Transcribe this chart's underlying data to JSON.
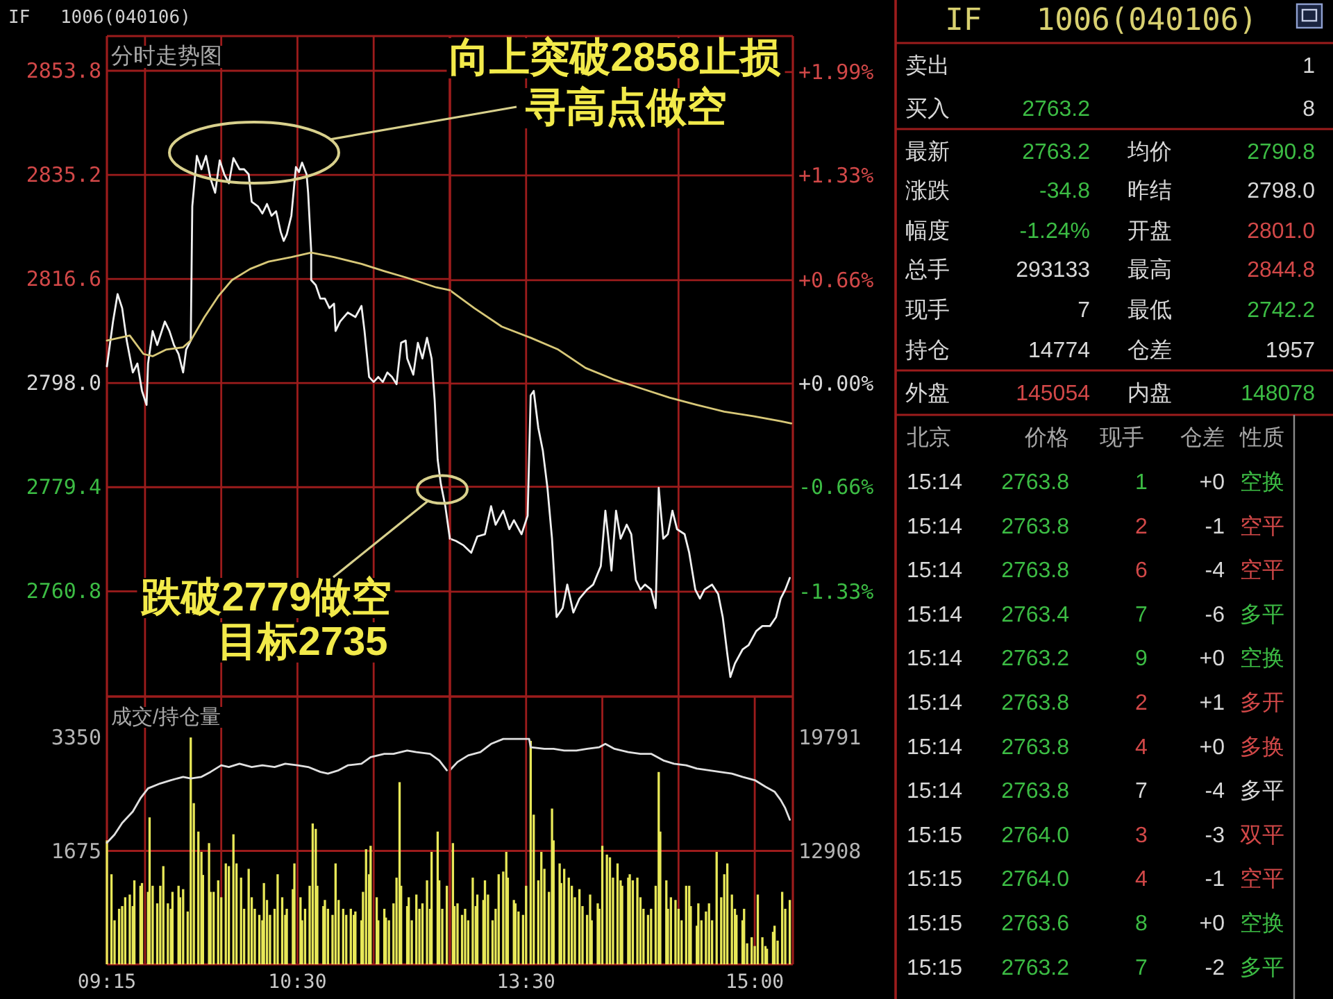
{
  "chart_data": [
    {
      "type": "line",
      "title": "IF 1006(040106)",
      "subtitle": "分时走势图",
      "xlim": [
        9.25,
        11.5
      ],
      "xticks": [
        {
          "value": 9.5,
          "label": null
        },
        {
          "value": 10,
          "label": null
        },
        {
          "value": 10.5,
          "label": null
        },
        {
          "value": 11,
          "label": null
        }
      ],
      "ylim": [
        2742,
        2860
      ],
      "yticks": [
        2760.8,
        2779.4,
        {
          "value": 2798,
          "label": "2798.0"
        },
        2816.6,
        2835.2,
        2853.8
      ],
      "y2lim": [
        -2.0,
        2.22
      ],
      "grid": true,
      "tick_labels": "y",
      "series": [
        {
          "color": "#f0f0f0",
          "x": [
            9.25,
            9.29,
            9.32,
            9.35,
            9.38,
            9.42,
            9.45,
            9.48,
            9.51,
            9.52,
            9.55,
            9.58,
            9.63,
            9.66,
            9.69,
            9.72,
            9.75,
            9.77,
            9.8,
            9.81,
            9.84,
            9.87,
            9.9,
            9.93,
            9.96,
            9.99,
            10.02,
            10.05,
            10.08,
            10.12,
            10.15,
            10.18,
            10.2,
            10.24,
            10.27,
            10.3,
            10.33,
            10.36,
            10.39,
            10.41,
            10.43,
            10.46,
            10.49,
            10.51,
            10.53,
            10.56,
            10.57,
            10.59,
            10.59,
            10.62,
            10.65,
            10.68,
            10.71,
            10.74,
            10.75,
            10.78,
            10.83,
            10.88,
            10.92,
            10.94,
            10.97,
            11.0,
            11.03,
            11.06,
            11.09,
            11.12,
            11.15,
            11.18,
            11.21,
            11.22,
            11.26,
            11.29,
            11.32,
            11.35,
            11.38,
            11.4,
            11.42,
            11.44,
            11.47,
            11.5
          ],
          "values": [
            2801.0,
            2809.0,
            2813.9,
            2811.4,
            2805.6,
            2799.9,
            2801.5,
            2796.6,
            2794.1,
            2801.5,
            2807.3,
            2804.8,
            2809.0,
            2807.3,
            2804.8,
            2803.2,
            2799.9,
            2804.0,
            2805.6,
            2829.6,
            2838.6,
            2836.2,
            2838.6,
            2834.5,
            2832.0,
            2837.8,
            2835.3,
            2833.7,
            2838.2,
            2836.2,
            2836.2,
            2835.3,
            2830.4,
            2829.6,
            2828.3,
            2830.0,
            2827.9,
            2828.7,
            2825.0,
            2823.4,
            2824.6,
            2827.9,
            2836.6,
            2835.7,
            2837.4,
            2835.3,
            2832.0,
            2821.7,
            2816.4,
            2815.5,
            2813.1,
            2813.1,
            2811.4,
            2812.2,
            2807.3,
            2809.0,
            2810.6,
            2809.8,
            2811.8,
            2807.3,
            2799.1,
            2798.2,
            2799.1,
            2798.2,
            2799.9,
            2799.1,
            2797.8,
            2805.2,
            2805.6,
            2802.4,
            2799.5,
            2805.2,
            2802.4,
            2806.1,
            2802.4,
            2795.0,
            2784.3,
            2780.1,
            2776.0,
            2770.2
          ]
        },
        {
          "color": "#d8c878",
          "x": [
            9.25,
            9.4,
            9.49,
            9.55,
            9.64,
            9.75,
            9.8,
            9.89,
            9.98,
            10.07,
            10.19,
            10.31,
            10.46,
            10.59,
            10.74,
            10.92,
            11.07,
            11.22,
            11.41,
            11.48,
            11.5
          ],
          "values": [
            2805.6,
            2806.5,
            2803.2,
            2802.8,
            2804.0,
            2804.4,
            2805.6,
            2809.8,
            2813.5,
            2816.4,
            2818.4,
            2819.7,
            2820.5,
            2821.3,
            2820.5,
            2819.3,
            2818.0,
            2816.8,
            2815.1,
            2814.7,
            2814.6
          ]
        }
      ],
      "annotations": [
        "向上突破2858止损",
        "寻高点做空",
        {
          "text": "跌破2779做空",
          "x": 11.45,
          "y": 2779
        },
        "目标2735"
      ]
    },
    {
      "type": "line",
      "xlim": [
        13,
        15.25
      ],
      "xticks": [
        {
          "value": 13.5,
          "label": null
        },
        {
          "value": 14.5,
          "label": null
        }
      ],
      "ylim": [
        2742,
        2860
      ],
      "y2lim": [
        -2.0,
        2.22
      ],
      "y2ticks": [
        {
          "value": -1.33,
          "label": "-1.33%"
        },
        {
          "value": -0.66,
          "label": "-0.66%"
        },
        {
          "value": 0,
          "label": "+0.00%"
        },
        {
          "value": 0.66,
          "label": "+0.66%"
        },
        {
          "value": 1.33,
          "label": "+1.33%"
        },
        {
          "value": 1.99,
          "label": "+1.99%"
        }
      ],
      "grid": true,
      "tick_labels": "y",
      "series": [
        {
          "color": "#f0f0f0",
          "x": [
            13.0,
            13.04,
            13.09,
            13.14,
            13.18,
            13.23,
            13.27,
            13.3,
            13.35,
            13.39,
            13.42,
            13.47,
            13.51,
            13.53,
            13.55,
            13.58,
            13.61,
            13.64,
            13.67,
            13.7,
            13.74,
            13.77,
            13.81,
            13.85,
            13.9,
            13.94,
            13.99,
            14.02,
            14.04,
            14.06,
            14.09,
            14.12,
            14.16,
            14.19,
            14.22,
            14.25,
            14.28,
            14.32,
            14.35,
            14.37,
            14.4,
            14.43,
            14.46,
            14.49,
            14.54,
            14.57,
            14.61,
            14.64,
            14.67,
            14.72,
            14.76,
            14.79,
            14.82,
            14.84,
            14.87,
            14.92,
            14.96,
            15.01,
            15.05,
            15.1,
            15.14,
            15.17,
            15.2,
            15.23
          ],
          "values": [
            2770.2,
            2769.8,
            2769.0,
            2767.7,
            2770.6,
            2771.0,
            2776.0,
            2772.7,
            2775.2,
            2771.9,
            2773.5,
            2771.0,
            2774.3,
            2795.8,
            2796.6,
            2790.0,
            2785.9,
            2779.3,
            2770.2,
            2756.2,
            2757.8,
            2762.0,
            2757.0,
            2759.5,
            2761.1,
            2762.0,
            2765.3,
            2775.2,
            2770.2,
            2764.5,
            2775.2,
            2770.2,
            2772.7,
            2771.0,
            2762.8,
            2761.1,
            2762.0,
            2761.1,
            2757.8,
            2779.3,
            2770.2,
            2771.0,
            2775.2,
            2771.9,
            2771.0,
            2767.7,
            2761.1,
            2759.5,
            2761.1,
            2762.0,
            2760.3,
            2756.2,
            2749.6,
            2745.5,
            2747.9,
            2750.4,
            2751.2,
            2753.7,
            2754.6,
            2754.6,
            2756.2,
            2759.5,
            2761.1,
            2763.2
          ]
        },
        {
          "color": "#d8c878",
          "x": [
            13.0,
            13.16,
            13.34,
            13.53,
            13.71,
            13.89,
            14.07,
            14.26,
            14.44,
            14.62,
            14.8,
            14.99,
            15.17,
            15.24
          ],
          "values": [
            2814.6,
            2811.4,
            2808.1,
            2806.1,
            2804.0,
            2800.7,
            2798.7,
            2797.0,
            2795.4,
            2794.1,
            2792.9,
            2792.1,
            2791.2,
            2790.8
          ]
        }
      ]
    },
    {
      "type": "bar",
      "title": "成交/持仓量",
      "xlim": [
        9.25,
        11.5
      ],
      "xticks": [
        {
          "value": 9.25,
          "label": "09:15"
        },
        {
          "value": 9.5,
          "label": null
        },
        {
          "value": 10,
          "label": null
        },
        {
          "value": 10.5,
          "label": "10:30"
        },
        {
          "value": 11,
          "label": null
        }
      ],
      "ylim": [
        0,
        3350
      ],
      "yticks": [
        1675,
        3350
      ],
      "y2lim": [
        6025,
        19791
      ],
      "grid": true,
      "series": [
        {
          "type": "bar",
          "color": "#e8e858",
          "x": [
            9.25,
            9.28,
            9.3,
            9.33,
            9.35,
            9.37,
            9.4,
            9.42,
            9.43,
            9.47,
            9.48,
            9.52,
            9.53,
            9.55,
            9.58,
            9.6,
            9.62,
            9.65,
            9.67,
            9.68,
            9.72,
            9.73,
            9.75,
            9.78,
            9.8,
            9.82,
            9.85,
            9.87,
            9.88,
            9.92,
            9.93,
            9.95,
            9.98,
            10.0,
            10.03,
            10.05,
            10.08,
            10.1,
            10.13,
            10.15,
            10.18,
            10.2,
            10.22,
            10.25,
            10.27,
            10.28,
            10.3,
            10.32,
            10.35,
            10.37,
            10.4,
            10.42,
            10.43,
            10.47,
            10.48,
            10.52,
            10.53,
            10.55,
            10.58,
            10.6,
            10.62,
            10.63,
            10.67,
            10.68,
            10.7,
            10.73,
            10.75,
            10.77,
            10.8,
            10.82,
            10.85,
            10.87,
            10.88,
            10.92,
            10.93,
            10.95,
            10.97,
            10.98,
            11.02,
            11.03,
            11.07,
            11.08,
            11.1,
            11.13,
            11.15,
            11.17,
            11.18,
            11.22,
            11.23,
            11.25,
            11.28,
            11.3,
            11.32,
            11.35,
            11.37,
            11.38,
            11.42,
            11.43,
            11.45,
            11.48
          ],
          "values": [
            1830,
            1330,
            650,
            820,
            860,
            990,
            1030,
            860,
            1240,
            1160,
            1200,
            1070,
            2170,
            1160,
            900,
            1160,
            1450,
            900,
            820,
            1070,
            1160,
            990,
            1110,
            780,
            3350,
            2380,
            1960,
            1660,
            1320,
            1790,
            1070,
            1070,
            1240,
            990,
            1490,
            1450,
            1920,
            1490,
            1280,
            820,
            1410,
            990,
            820,
            730,
            650,
            1200,
            950,
            730,
            820,
            1330,
            990,
            730,
            820,
            1110,
            1490,
            990,
            650,
            820,
            1160,
            2080,
            2000,
            1160,
            860,
            950,
            820,
            730,
            1490,
            950,
            820,
            730,
            820,
            730,
            780,
            650,
            1070,
            1700,
            1330,
            1750,
            990,
            650,
            820,
            690,
            650,
            900,
            1280,
            2690,
            1160,
            860,
            990,
            650,
            1030,
            820,
            900,
            1240,
            820,
            1660,
            1960,
            1240,
            820,
            1160
          ]
        },
        {
          "type": "line",
          "axis": "y2",
          "color": "#e0e0e0",
          "x": [
            9.25,
            9.3,
            9.35,
            9.42,
            9.47,
            9.52,
            9.6,
            9.67,
            9.75,
            9.8,
            9.87,
            9.93,
            10.0,
            10.05,
            10.12,
            10.2,
            10.27,
            10.35,
            10.42,
            10.5,
            10.57,
            10.65,
            10.7,
            10.77,
            10.83,
            10.92,
            10.98,
            11.07,
            11.13,
            11.22,
            11.28,
            11.37,
            11.43,
            11.48
          ],
          "values": [
            13400,
            13900,
            14600,
            15300,
            16100,
            16700,
            17000,
            17200,
            17400,
            17300,
            17400,
            17700,
            18100,
            18000,
            18200,
            18000,
            18100,
            18000,
            18200,
            18100,
            18000,
            17700,
            17600,
            17800,
            18100,
            18200,
            18600,
            18800,
            18800,
            19000,
            18900,
            18800,
            18400,
            17800
          ]
        }
      ]
    },
    {
      "type": "bar",
      "xlim": [
        13,
        15.25
      ],
      "xticks": [
        {
          "value": 13.5,
          "label": "13:30"
        },
        {
          "value": 14,
          "label": null
        },
        {
          "value": 14.5,
          "label": null
        },
        {
          "value": 15,
          "label": "15:00"
        }
      ],
      "ylim": [
        0,
        3350
      ],
      "y2lim": [
        6025,
        19791
      ],
      "y2ticks": [
        12908,
        19791
      ],
      "grid": true,
      "series": [
        {
          "type": "bar",
          "color": "#e8e858",
          "x": [
            13.02,
            13.03,
            13.05,
            13.08,
            13.1,
            13.12,
            13.15,
            13.17,
            13.18,
            13.22,
            13.23,
            13.25,
            13.28,
            13.3,
            13.32,
            13.35,
            13.37,
            13.38,
            13.42,
            13.43,
            13.45,
            13.48,
            13.5,
            13.53,
            13.55,
            13.58,
            13.6,
            13.62,
            13.65,
            13.67,
            13.68,
            13.72,
            13.73,
            13.75,
            13.78,
            13.8,
            13.82,
            13.85,
            13.87,
            13.9,
            13.92,
            13.93,
            13.97,
            13.98,
            14.0,
            14.03,
            14.05,
            14.07,
            14.1,
            14.12,
            14.13,
            14.17,
            14.18,
            14.2,
            14.23,
            14.25,
            14.27,
            14.3,
            14.32,
            14.35,
            14.37,
            14.38,
            14.42,
            14.43,
            14.45,
            14.48,
            14.5,
            14.52,
            14.55,
            14.57,
            14.58,
            14.62,
            14.63,
            14.65,
            14.68,
            14.7,
            14.72,
            14.75,
            14.78,
            14.8,
            14.82,
            14.85,
            14.87,
            14.88,
            14.92,
            14.93,
            14.95,
            14.98,
            15.0,
            15.02,
            15.05,
            15.07,
            15.08,
            15.12,
            15.13,
            15.15,
            15.18,
            15.2,
            15.23
          ],
          "values": [
            1790,
            860,
            900,
            730,
            820,
            650,
            1280,
            860,
            1030,
            950,
            1240,
            1030,
            650,
            820,
            1330,
            1370,
            1660,
            1280,
            950,
            900,
            780,
            730,
            1160,
            3300,
            2210,
            1240,
            1660,
            1410,
            1070,
            2300,
            1830,
            1490,
            1200,
            1410,
            1280,
            1160,
            990,
            1110,
            860,
            730,
            1030,
            650,
            900,
            820,
            1750,
            1620,
            1580,
            1280,
            1490,
            1240,
            1160,
            1280,
            1330,
            1240,
            1280,
            990,
            820,
            730,
            820,
            1160,
            2840,
            1960,
            1240,
            820,
            990,
            950,
            820,
            650,
            1160,
            1160,
            860,
            570,
            900,
            650,
            780,
            900,
            650,
            1660,
            990,
            1330,
            1490,
            1030,
            820,
            730,
            650,
            820,
            310,
            400,
            270,
            1030,
            400,
            270,
            230,
            480,
            570,
            350,
            1070,
            820,
            950
          ]
        },
        {
          "type": "line",
          "axis": "y2",
          "color": "#e0e0e0",
          "x": [
            13.0,
            13.05,
            13.12,
            13.2,
            13.27,
            13.35,
            13.42,
            13.48,
            13.52,
            13.53,
            13.62,
            13.68,
            13.75,
            13.83,
            13.9,
            13.98,
            14.02,
            14.08,
            14.17,
            14.25,
            14.32,
            14.4,
            14.47,
            14.55,
            14.62,
            14.7,
            14.77,
            14.85,
            14.92,
            15.0,
            15.07,
            15.13,
            15.17,
            15.2,
            15.23
          ],
          "values": [
            17800,
            18300,
            18700,
            18900,
            19400,
            19700,
            19700,
            19700,
            19700,
            19200,
            19100,
            19100,
            19000,
            19000,
            19100,
            19200,
            19400,
            19100,
            18900,
            18800,
            18800,
            18400,
            18200,
            18100,
            17900,
            17800,
            17700,
            17600,
            17400,
            17200,
            16800,
            16500,
            16000,
            15500,
            14800
          ]
        }
      ]
    },
    {
      "type": "other",
      "title": "IF 1006(040106)",
      "annotations": [
        "卖出",
        "1",
        "买入",
        "2763.2",
        "8",
        "最新",
        "2763.2",
        "均价",
        "2790.8",
        "涨跌",
        "-34.8",
        "昨结",
        "2798.0",
        "幅度",
        "-1.24%",
        "开盘",
        "2801.0",
        "总手",
        "293133",
        "最高",
        "2844.8",
        "现手",
        "7",
        "最低",
        "2742.2",
        "持仓",
        "14774",
        "仓差",
        "1957",
        "外盘",
        "145054",
        "内盘",
        "148078",
        "北京",
        "价格",
        "现手",
        "仓差",
        "性质",
        "15:14",
        "2763.8",
        "1",
        "+0",
        "空换",
        "15:14",
        "2763.8",
        "2",
        "-1",
        "空平",
        "15:14",
        "2763.8",
        "6",
        "-4",
        "空平",
        "15:14",
        "2763.4",
        "7",
        "-6",
        "多平",
        "15:14",
        "2763.2",
        "9",
        "+0",
        "空换",
        "15:14",
        "2763.8",
        "2",
        "+1",
        "多开",
        "15:14",
        "2763.8",
        "4",
        "+0",
        "多换",
        "15:14",
        "2763.8",
        "7",
        "-4",
        "多平",
        "15:15",
        "2764.0",
        "3",
        "-3",
        "双平",
        "15:15",
        "2764.0",
        "4",
        "-1",
        "空平",
        "15:15",
        "2763.6",
        "8",
        "+0",
        "空换",
        "15:15",
        "2763.2",
        "7",
        "-2",
        "多平"
      ],
      "colors": [
        "#d8d8d8",
        "#d8d8d8",
        "#d8d8d8",
        "#3cbc44",
        "#d8d8d8",
        "#d8d8d8",
        "#3cbc44",
        "#d8d8d8",
        "#3cbc44",
        "#d8d8d8",
        "#3cbc44",
        "#d8d8d8",
        "#d8d8d8",
        "#d8d8d8",
        "#3cbc44",
        "#d8d8d8",
        "#d24848",
        "#d8d8d8",
        "#d8d8d8",
        "#d8d8d8",
        "#d24848",
        "#d8d8d8",
        "#d8d8d8",
        "#d8d8d8",
        "#3cbc44",
        "#d8d8d8",
        "#d8d8d8",
        "#d8d8d8",
        "#d8d8d8",
        "#d8d8d8",
        "#d24848",
        "#d8d8d8",
        "#3cbc44",
        "#a8a8a8",
        "#a8a8a8",
        "#a8a8a8",
        "#a8a8a8",
        "#a8a8a8",
        "#d8d8d8",
        "#3cbc44",
        "#3cbc44",
        "#d8d8d8",
        "#3cbc44",
        "#d8d8d8",
        "#3cbc44",
        "#d24848",
        "#d8d8d8",
        "#d24848",
        "#d8d8d8",
        "#3cbc44",
        "#d24848",
        "#d8d8d8",
        "#d24848",
        "#d8d8d8",
        "#3cbc44",
        "#3cbc44",
        "#d8d8d8",
        "#3cbc44",
        "#d8d8d8",
        "#3cbc44",
        "#3cbc44",
        "#d8d8d8",
        "#3cbc44",
        "#d8d8d8",
        "#3cbc44",
        "#d24848",
        "#d8d8d8",
        "#d24848",
        "#d8d8d8",
        "#3cbc44",
        "#d24848",
        "#d8d8d8",
        "#d24848",
        "#d8d8d8",
        "#3cbc44",
        "#d8d8d8",
        "#d8d8d8",
        "#d8d8d8",
        "#d8d8d8",
        "#3cbc44",
        "#d24848",
        "#d8d8d8",
        "#d24848",
        "#d8d8d8",
        "#3cbc44",
        "#d24848",
        "#d8d8d8",
        "#d24848",
        "#d8d8d8",
        "#3cbc44",
        "#3cbc44",
        "#d8d8d8",
        "#3cbc44",
        "#d8d8d8",
        "#3cbc44",
        "#3cbc44",
        "#d8d8d8",
        "#3cbc44"
      ]
    }
  ]
}
